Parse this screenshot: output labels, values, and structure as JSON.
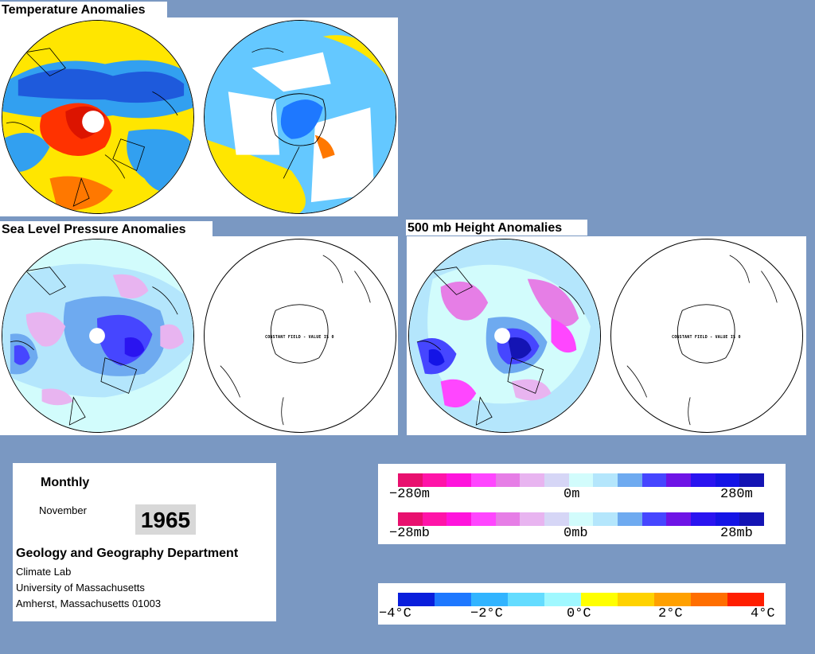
{
  "sections": {
    "temperature": "Temperature Anomalies",
    "slp": "Sea Level Pressure Anomalies",
    "height": "500 mb Height Anomalies"
  },
  "maps": {
    "slp_south_note": "CONSTANT FIELD - VALUE IS 0",
    "height_south_note": "CONSTANT FIELD - VALUE IS 0"
  },
  "info": {
    "period": "Monthly",
    "month": "November",
    "year": "1965",
    "department": "Geology and Geography Department",
    "lab": "Climate Lab",
    "university": "University of Massachusetts",
    "address": "Amherst, Massachusetts 01003"
  },
  "legends": {
    "height": {
      "min": "−280m",
      "mid": "0m",
      "max": "280m"
    },
    "pressure": {
      "min": "−28mb",
      "mid": "0mb",
      "max": "28mb"
    },
    "temperature": {
      "t1": "−4°C",
      "t2": "−2°C",
      "t3": "0°C",
      "t4": "2°C",
      "t5": "4°C"
    },
    "anomaly_colors": [
      "#e8106e",
      "#ff14a8",
      "#ff14dc",
      "#ff46ff",
      "#e67ee6",
      "#e8b4f0",
      "#d6d6f6",
      "#d2fcfc",
      "#b4e6fc",
      "#6eaaf0",
      "#4646ff",
      "#6e14e6",
      "#2a14f0",
      "#1414e6",
      "#1414b4"
    ],
    "temperature_colors": [
      "#0a1edc",
      "#1e78ff",
      "#32b4ff",
      "#64dcff",
      "#a0f8ff",
      "#ffff00",
      "#ffd200",
      "#ffa000",
      "#ff6e00",
      "#ff1e00"
    ]
  }
}
